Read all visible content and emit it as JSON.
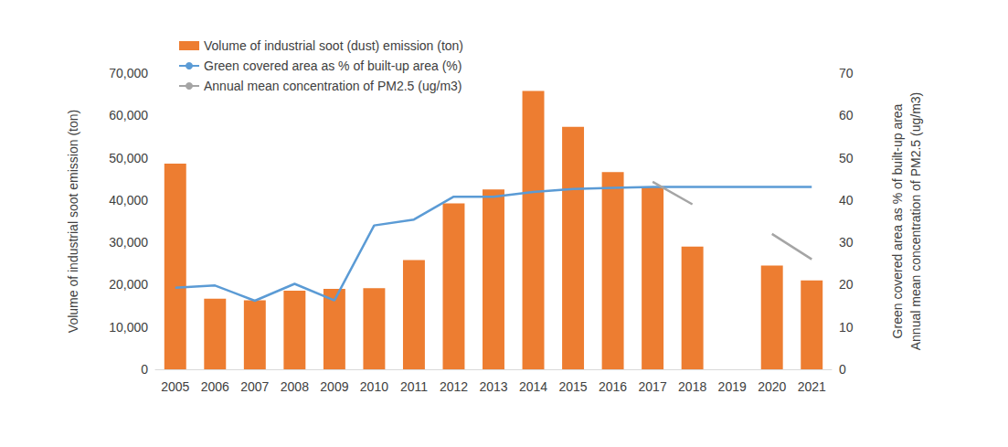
{
  "chart_data": {
    "type": "bar",
    "categories": [
      "2005",
      "2006",
      "2007",
      "2008",
      "2009",
      "2010",
      "2011",
      "2012",
      "2013",
      "2014",
      "2015",
      "2016",
      "2017",
      "2018",
      "2019",
      "2020",
      "2021"
    ],
    "series": [
      {
        "name": "Volume of industrial soot (dust) emission (ton)",
        "type": "bar",
        "color": "#ED7D31",
        "values": [
          48600,
          16700,
          16300,
          18600,
          19000,
          19200,
          25800,
          39200,
          42500,
          65800,
          57300,
          46600,
          43200,
          29000,
          null,
          24500,
          21000
        ]
      },
      {
        "name": "Green covered area as % of built-up area (%)",
        "type": "line",
        "axis": "y2",
        "color": "#5B9BD5",
        "values": [
          19.3,
          19.8,
          16.2,
          20.2,
          16.3,
          34.0,
          35.4,
          40.8,
          40.8,
          41.9,
          42.6,
          42.9,
          43.1,
          43.1,
          43.1,
          43.1,
          43.1
        ]
      },
      {
        "name": "Annual mean concentration of PM2.5 (ug/m3)",
        "type": "line",
        "axis": "y2",
        "color": "#A5A5A5",
        "values": [
          null,
          null,
          null,
          null,
          null,
          null,
          null,
          null,
          null,
          null,
          null,
          null,
          44.3,
          39.0,
          null,
          32.0,
          26.0
        ]
      }
    ],
    "ylabel": "Volume of industrial soot emission (ton)",
    "y2label": [
      "Green covered area as % of built-up area",
      "Annual mean concentration of PM2.5 (ug/m3)"
    ],
    "ylim": [
      0,
      70000
    ],
    "yticks": [
      0,
      {
        "value": 10000,
        "label": "10,000"
      },
      {
        "value": 20000,
        "label": "20,000"
      },
      {
        "value": 30000,
        "label": "30,000"
      },
      {
        "value": 40000,
        "label": "40,000"
      },
      {
        "value": 50000,
        "label": "50,000"
      },
      {
        "value": 60000,
        "label": "60,000"
      },
      {
        "value": 70000,
        "label": "70,000"
      }
    ],
    "y2lim": [
      0,
      70
    ],
    "y2ticks": [
      0,
      10,
      20,
      30,
      40,
      50,
      60,
      70
    ],
    "grid": false,
    "legend": "upper left"
  }
}
